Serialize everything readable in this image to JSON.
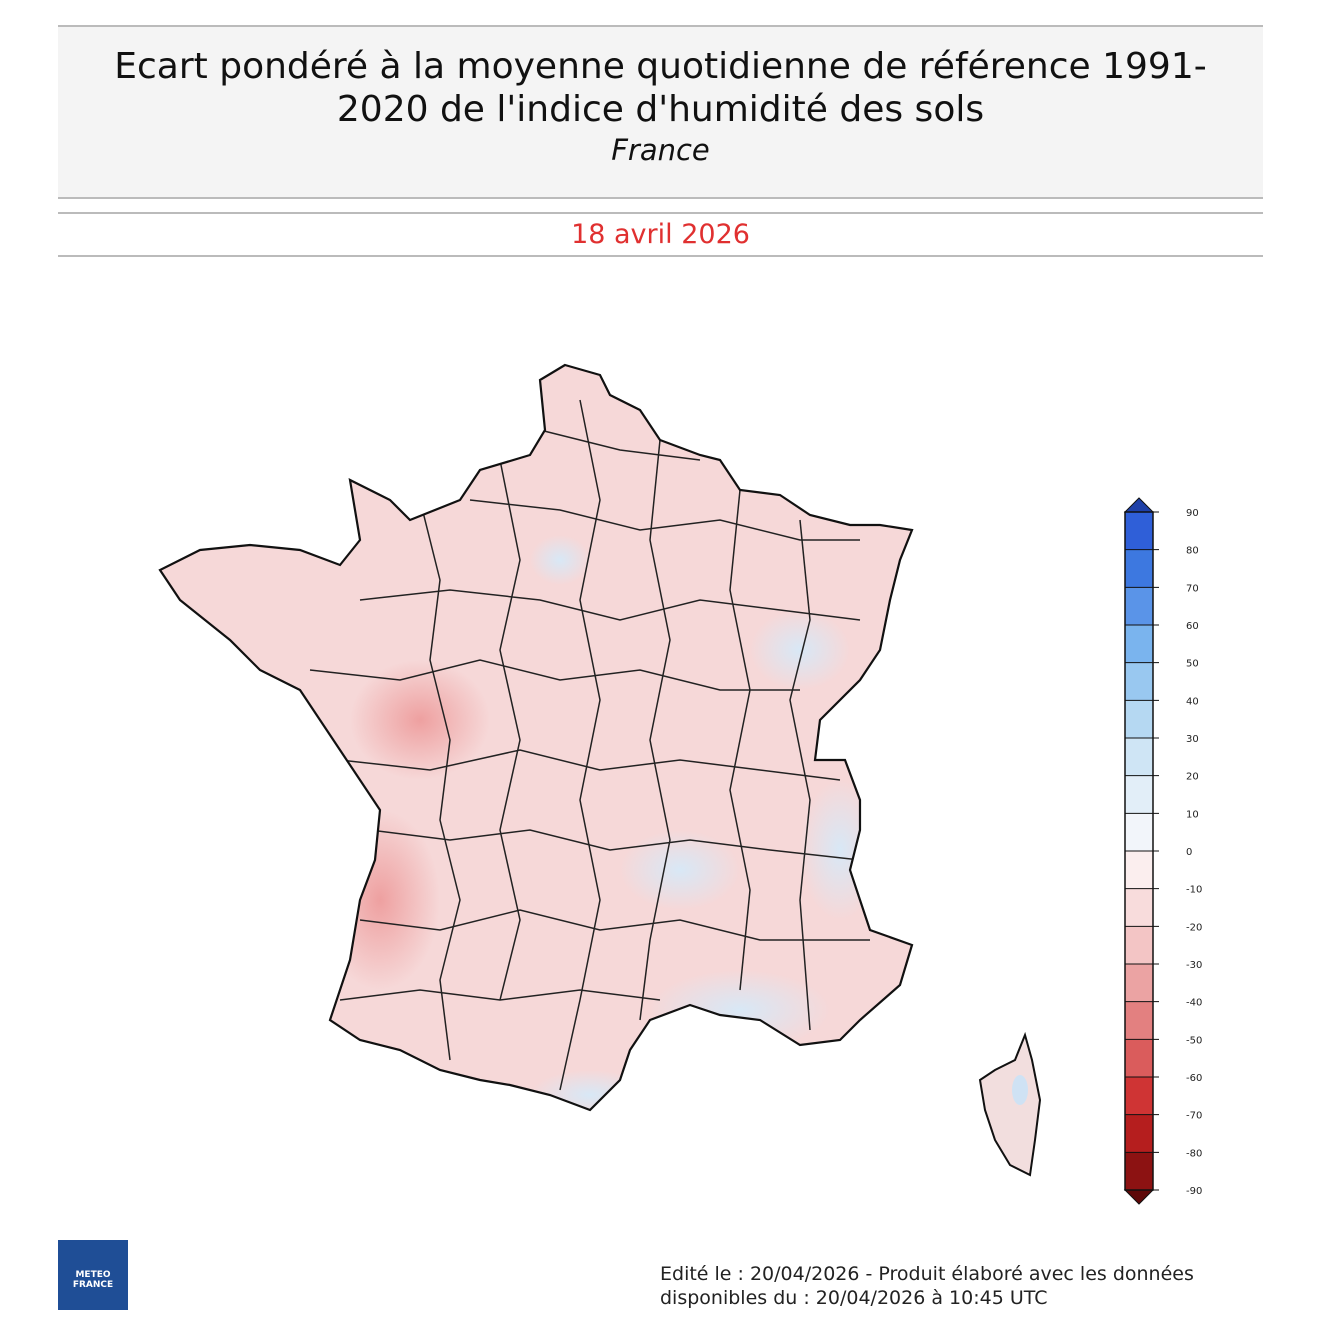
{
  "header": {
    "title": [
      "Ecart pondéré à la moyenne quotidienne de référence 1991-",
      "2020 de l'indice d'humidité des sols"
    ],
    "subtitle": "France",
    "date": "18 avril 2026"
  },
  "colorbar": {
    "ticks": [
      90,
      80,
      70,
      60,
      50,
      40,
      30,
      20,
      10,
      0,
      -10,
      -20,
      -30,
      -40,
      -50,
      -60,
      -70,
      -80,
      -90
    ],
    "colors": [
      "#2f5fd8",
      "#3d78e0",
      "#5a94e8",
      "#7ab4ee",
      "#99c8f0",
      "#b5d8f2",
      "#cfe5f5",
      "#e2eef8",
      "#f2f5fa",
      "#fbeeee",
      "#f8dcdc",
      "#f3c5c5",
      "#eba3a3",
      "#e38080",
      "#da5c5c",
      "#cf3434",
      "#b51e1e",
      "#8c1212"
    ],
    "over_color": "#1e40a8",
    "under_color": "#5e0808"
  },
  "logo": {
    "text": [
      "METEO",
      "FRANCE"
    ]
  },
  "footer": [
    "Edité le : 20/04/2026 - Produit élaboré avec les données",
    "disponibles du : 20/04/2026 à 10:45 UTC"
  ]
}
